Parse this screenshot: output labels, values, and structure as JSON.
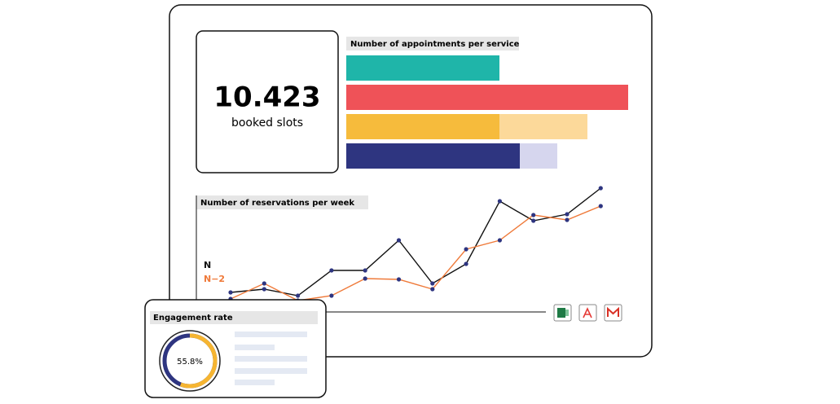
{
  "kpi": {
    "value": "10.423",
    "label": "booked slots"
  },
  "services_chart": {
    "type": "bar",
    "title": "Number of appointments per service",
    "xlim": [
      0,
      350
    ],
    "bars": [
      {
        "segments": [
          {
            "value": 188,
            "color": "#1fb5a9"
          }
        ]
      },
      {
        "segments": [
          {
            "value": 346,
            "color": "#ef5258"
          }
        ]
      },
      {
        "segments": [
          {
            "value": 188,
            "color": "#f6bb3c"
          },
          {
            "value": 108,
            "color": "#fcd99a"
          }
        ]
      },
      {
        "segments": [
          {
            "value": 213,
            "color": "#2e3580"
          },
          {
            "value": 46,
            "color": "#d6d6ee"
          }
        ]
      }
    ]
  },
  "reservations_chart": {
    "type": "line",
    "title": "Number of reservations per week",
    "ylim": [
      0,
      160
    ],
    "series": [
      {
        "name": "N",
        "color": "#111111",
        "values": [
          21,
          25,
          17,
          48,
          48,
          85,
          32,
          56,
          133,
          109,
          117,
          149
        ]
      },
      {
        "name": "N−2",
        "color": "#ef7a3a",
        "values": [
          13,
          32,
          11,
          17,
          38,
          37,
          25,
          74,
          85,
          116,
          110,
          127
        ]
      }
    ]
  },
  "engagement": {
    "title": "Engagement rate",
    "type": "donut",
    "value": 55.8,
    "value_label": "55.8%",
    "max": 100
  }
}
